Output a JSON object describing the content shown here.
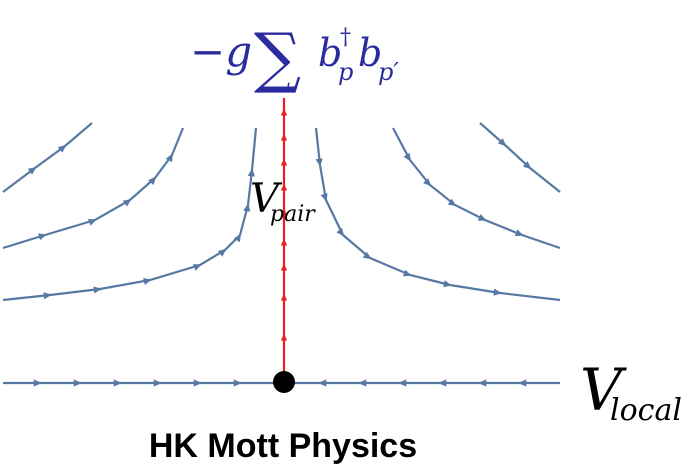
{
  "colors": {
    "flow": "#5878a4",
    "pair_flow": "#ee1c25",
    "formula": "#2b2ba0",
    "label": "#000000",
    "fixed_point": "#000000"
  },
  "formula": {
    "minus_g": "−g",
    "sum_symbol": "∑",
    "sum_index": "ʹ",
    "b_base": "b",
    "dagger": "†",
    "p_sub": "p",
    "p_prime_sub": "p′"
  },
  "labels": {
    "v_pair_main": "V",
    "v_pair_sub": "pair",
    "v_local_main": "V",
    "v_local_sub": "local"
  },
  "caption": "HK Mott Physics"
}
